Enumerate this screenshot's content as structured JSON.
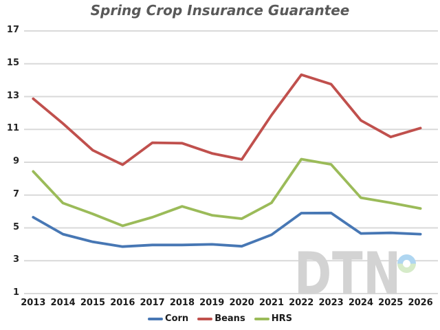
{
  "chart_data": {
    "type": "line",
    "title": "Spring Crop Insurance Guarantee",
    "x": [
      2013,
      2014,
      2015,
      2016,
      2017,
      2018,
      2019,
      2020,
      2021,
      2022,
      2023,
      2024,
      2025,
      2026
    ],
    "series": [
      {
        "name": "Corn",
        "color": "#4777b4",
        "values": [
          5.65,
          4.62,
          4.15,
          3.86,
          3.96,
          3.96,
          4.0,
          3.88,
          4.58,
          5.9,
          5.91,
          4.66,
          4.7,
          4.62
        ]
      },
      {
        "name": "Beans",
        "color": "#c0504d",
        "values": [
          12.87,
          11.36,
          9.73,
          8.85,
          10.19,
          10.16,
          9.54,
          9.17,
          11.87,
          14.33,
          13.76,
          11.55,
          10.54,
          11.08
        ]
      },
      {
        "name": "HRS",
        "color": "#9bbb59",
        "values": [
          8.44,
          6.51,
          5.85,
          5.13,
          5.65,
          6.31,
          5.77,
          5.56,
          6.53,
          9.19,
          8.87,
          6.84,
          6.53,
          6.18
        ]
      }
    ],
    "xlabel": "",
    "ylabel": "",
    "ylim": [
      1,
      17
    ],
    "yticks": [
      1,
      3,
      5,
      7,
      9,
      11,
      13,
      15,
      17
    ],
    "grid": "horizontal-only",
    "legend_position": "bottom-center"
  },
  "watermark": {
    "text": "DTN",
    "letter_color": "#d3d3d3",
    "ring_top_color": "#afd6f1",
    "ring_bottom_color": "#d6ebc9"
  },
  "colors": {
    "background": "#ffffff",
    "gridline": "#d9d9d9",
    "title": "#595959",
    "axis_labels": "#262626"
  }
}
